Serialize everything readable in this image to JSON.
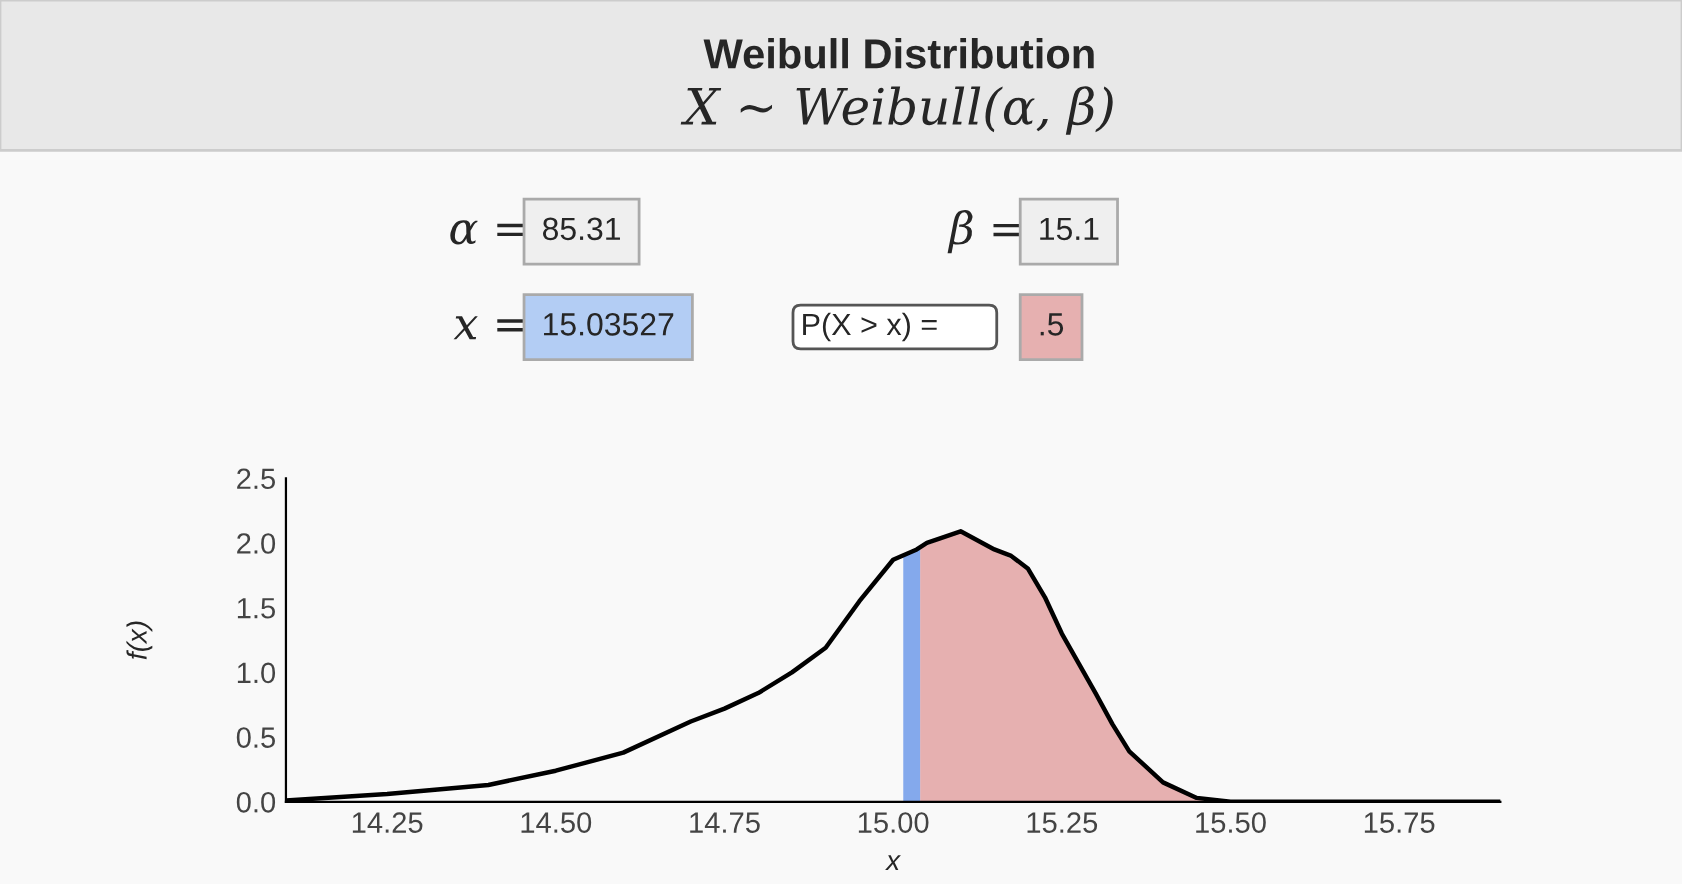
{
  "chart_data": {
    "type": "line",
    "title": "Weibull Distribution",
    "subtitle": "X ~ Weibull(α, β)",
    "xlabel": "x",
    "ylabel": "f(x)",
    "annotations": [
      "α =",
      "85.31",
      "β =",
      "15.1",
      "x =",
      "15.03527",
      "P(X > x) =",
      ".5"
    ],
    "series": [
      {
        "color": "#000000",
        "x": [
          14.1,
          14.25,
          14.4,
          14.5,
          14.6,
          14.7,
          14.75,
          14.8,
          14.85,
          14.9,
          14.95,
          15.0,
          15.035,
          15.05,
          15.1,
          15.15,
          15.175,
          15.2,
          15.225,
          15.25,
          15.275,
          15.3,
          15.325,
          15.35,
          15.4,
          15.45,
          15.5,
          15.9
        ],
        "values": [
          0.01,
          0.06,
          0.13,
          0.24,
          0.38,
          0.62,
          0.72,
          0.84,
          1.0,
          1.19,
          1.55,
          1.87,
          1.95,
          2.0,
          2.09,
          1.95,
          1.9,
          1.8,
          1.58,
          1.3,
          1.07,
          0.84,
          0.6,
          0.39,
          0.15,
          0.03,
          0.0,
          0.0
        ]
      },
      {
        "type": "area",
        "color": "#e6b0b0",
        "x": [
          15.04,
          15.1,
          15.15,
          15.2,
          15.25,
          15.3,
          15.35,
          15.4,
          15.45,
          15.5
        ],
        "values": [
          1.96,
          2.09,
          1.95,
          1.8,
          1.3,
          0.84,
          0.39,
          0.15,
          0.03,
          0.0
        ]
      },
      {
        "type": "area",
        "color": "#84a9ec",
        "x": [
          15.015,
          15.04
        ],
        "values": [
          1.9,
          1.96
        ]
      }
    ],
    "xlim": [
      14.1,
      15.9
    ],
    "ylim": [
      0,
      2.5
    ],
    "xticks": [
      {
        "value": 14.25,
        "label": "14.25"
      },
      {
        "value": 14.5,
        "label": "14.50"
      },
      {
        "value": 14.75,
        "label": "14.75"
      },
      {
        "value": 15.0,
        "label": "15.00"
      },
      {
        "value": 15.25,
        "label": "15.25"
      },
      {
        "value": 15.5,
        "label": "15.50"
      },
      {
        "value": 15.75,
        "label": "15.75"
      }
    ],
    "yticks": [
      {
        "value": 0,
        "label": "0.0"
      },
      {
        "value": 0.5,
        "label": "0.5"
      },
      {
        "value": 1.0,
        "label": "1.0"
      },
      {
        "value": 1.5,
        "label": "1.5"
      },
      {
        "value": 2.0,
        "label": "2.0"
      },
      {
        "value": 2.5,
        "label": "2.5"
      }
    ],
    "grid": false,
    "legend": false
  }
}
